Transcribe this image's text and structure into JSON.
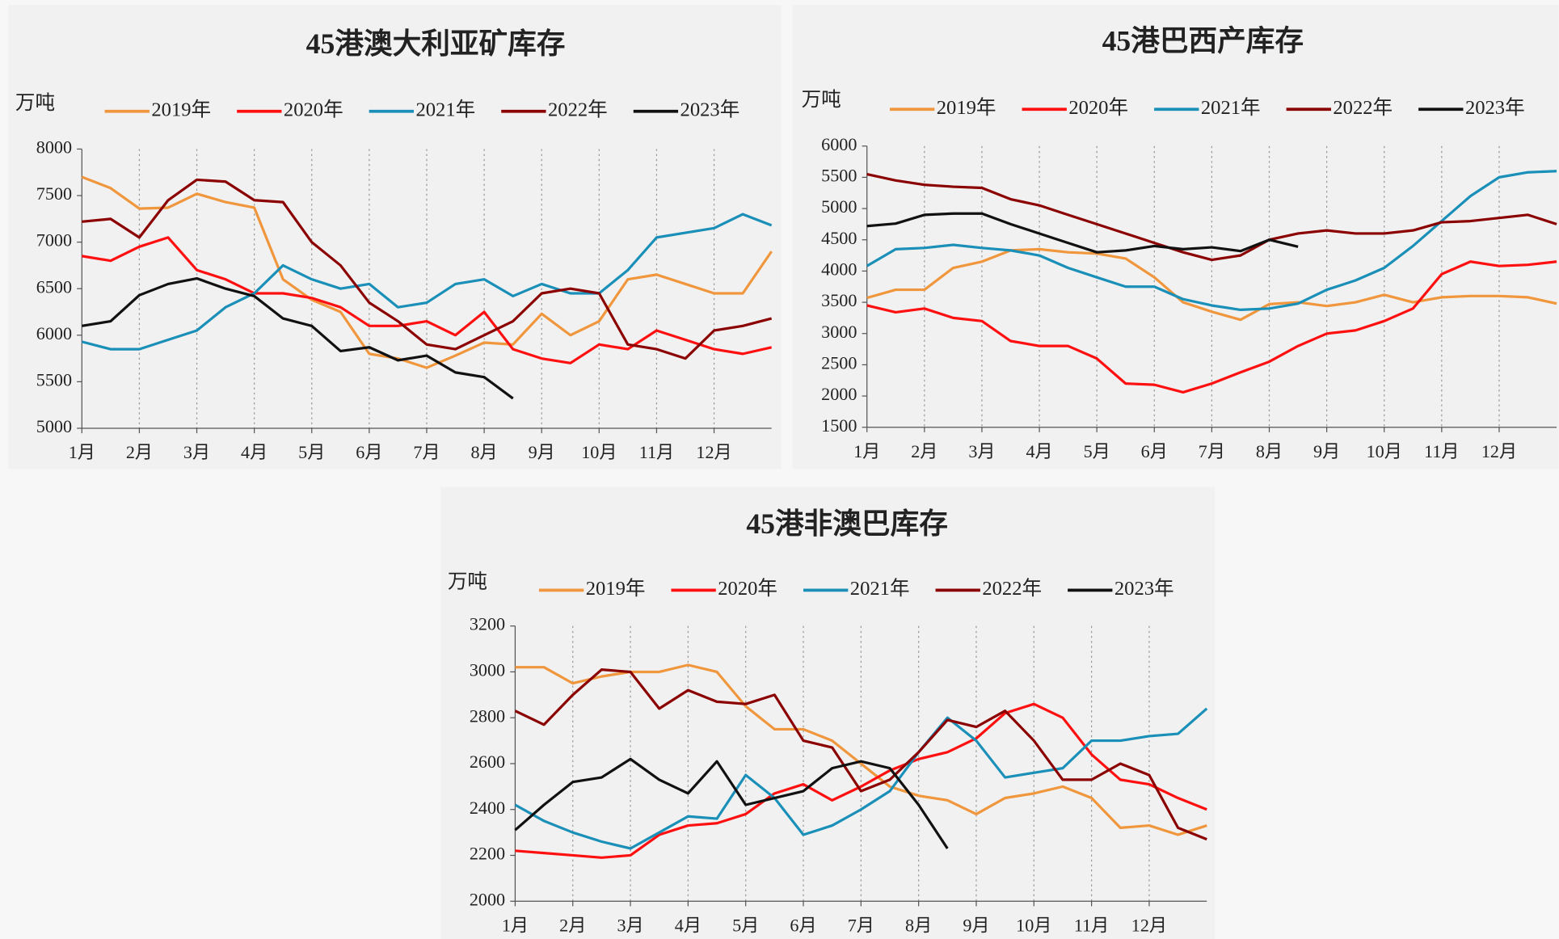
{
  "chart_data": [
    {
      "type": "line",
      "title": "45港澳大利亚矿库存",
      "y_label": "万吨",
      "x": [
        1,
        1.5,
        2,
        2.5,
        3,
        3.5,
        4,
        4.5,
        5,
        5.5,
        6,
        6.5,
        7,
        7.5,
        8,
        8.5,
        9,
        9.5,
        10,
        10.5,
        11,
        11.5,
        12,
        12.5,
        13
      ],
      "xlim": [
        1,
        13
      ],
      "xticks": [
        {
          "value": 1,
          "label": "1月"
        },
        {
          "value": 2,
          "label": "2月"
        },
        {
          "value": 3,
          "label": "3月"
        },
        {
          "value": 4,
          "label": "4月"
        },
        {
          "value": 5,
          "label": "5月"
        },
        {
          "value": 6,
          "label": "6月"
        },
        {
          "value": 7,
          "label": "7月"
        },
        {
          "value": 8,
          "label": "8月"
        },
        {
          "value": 9,
          "label": "9月"
        },
        {
          "value": 10,
          "label": "10月"
        },
        {
          "value": 11,
          "label": "11月"
        },
        {
          "value": 12,
          "label": "12月"
        }
      ],
      "ylim": [
        5000,
        8000
      ],
      "yticks": [
        5000,
        5500,
        6000,
        6500,
        7000,
        7500,
        8000
      ],
      "grid": true,
      "series": [
        {
          "name": "2019年",
          "color": "#f0963c",
          "values": [
            7700,
            7580,
            7360,
            7370,
            7520,
            7430,
            7370,
            6600,
            6380,
            6250,
            5800,
            5750,
            5650,
            5780,
            5920,
            5900,
            6230,
            6000,
            6150,
            6600,
            6650,
            6550,
            6450,
            6450,
            6900
          ]
        },
        {
          "name": "2020年",
          "color": "#ff1010",
          "values": [
            6850,
            6800,
            6950,
            7050,
            6700,
            6600,
            6450,
            6450,
            6400,
            6300,
            6100,
            6100,
            6150,
            6000,
            6250,
            5850,
            5750,
            5700,
            5900,
            5850,
            6050,
            5950,
            5850,
            5800,
            5870
          ]
        },
        {
          "name": "2021年",
          "color": "#1a8fb8",
          "values": [
            5930,
            5850,
            5850,
            5950,
            6050,
            6300,
            6450,
            6750,
            6600,
            6500,
            6550,
            6300,
            6350,
            6550,
            6600,
            6420,
            6550,
            6450,
            6450,
            6700,
            7050,
            7100,
            7150,
            7300,
            7180
          ]
        },
        {
          "name": "2022年",
          "color": "#8b0000",
          "values": [
            7220,
            7250,
            7050,
            7450,
            7670,
            7650,
            7450,
            7430,
            7000,
            6750,
            6350,
            6150,
            5900,
            5850,
            6000,
            6150,
            6450,
            6500,
            6450,
            5900,
            5850,
            5750,
            6050,
            6100,
            6180
          ]
        },
        {
          "name": "2023年",
          "color": "#111111",
          "values": [
            6100,
            6150,
            6430,
            6550,
            6610,
            6500,
            6420,
            6180,
            6100,
            5830,
            5870,
            5730,
            5780,
            5600,
            5550,
            5320,
            null,
            null,
            null,
            null,
            null,
            null,
            null,
            null,
            null
          ]
        }
      ]
    },
    {
      "type": "line",
      "title": "45港巴西产库存",
      "y_label": "万吨",
      "x": [
        1,
        1.5,
        2,
        2.5,
        3,
        3.5,
        4,
        4.5,
        5,
        5.5,
        6,
        6.5,
        7,
        7.5,
        8,
        8.5,
        9,
        9.5,
        10,
        10.5,
        11,
        11.5,
        12,
        12.5,
        13
      ],
      "xlim": [
        1,
        13
      ],
      "xticks": [
        {
          "value": 1,
          "label": "1月"
        },
        {
          "value": 2,
          "label": "2月"
        },
        {
          "value": 3,
          "label": "3月"
        },
        {
          "value": 4,
          "label": "4月"
        },
        {
          "value": 5,
          "label": "5月"
        },
        {
          "value": 6,
          "label": "6月"
        },
        {
          "value": 7,
          "label": "7月"
        },
        {
          "value": 8,
          "label": "8月"
        },
        {
          "value": 9,
          "label": "9月"
        },
        {
          "value": 10,
          "label": "10月"
        },
        {
          "value": 11,
          "label": "11月"
        },
        {
          "value": 12,
          "label": "12月"
        }
      ],
      "ylim": [
        1500,
        6000
      ],
      "yticks": [
        1500,
        2000,
        2500,
        3000,
        3500,
        4000,
        4500,
        5000,
        5500,
        6000
      ],
      "grid": true,
      "series": [
        {
          "name": "2019年",
          "color": "#f0963c",
          "values": [
            3570,
            3700,
            3700,
            4050,
            4150,
            4330,
            4350,
            4300,
            4280,
            4200,
            3900,
            3500,
            3350,
            3220,
            3470,
            3500,
            3440,
            3500,
            3620,
            3500,
            3580,
            3600,
            3600,
            3580,
            3480
          ]
        },
        {
          "name": "2020年",
          "color": "#ff1010",
          "values": [
            3450,
            3340,
            3400,
            3250,
            3200,
            2880,
            2800,
            2800,
            2600,
            2200,
            2180,
            2060,
            2200,
            2380,
            2550,
            2800,
            3000,
            3050,
            3200,
            3400,
            3950,
            4150,
            4080,
            4100,
            4150
          ]
        },
        {
          "name": "2021年",
          "color": "#1a8fb8",
          "values": [
            4080,
            4350,
            4370,
            4420,
            4370,
            4330,
            4250,
            4050,
            3900,
            3750,
            3750,
            3550,
            3450,
            3380,
            3400,
            3480,
            3700,
            3850,
            4050,
            4400,
            4800,
            5200,
            5500,
            5580,
            5600
          ]
        },
        {
          "name": "2022年",
          "color": "#8b0000",
          "values": [
            5550,
            5450,
            5380,
            5350,
            5330,
            5150,
            5050,
            4900,
            4750,
            4600,
            4450,
            4300,
            4180,
            4250,
            4500,
            4600,
            4650,
            4600,
            4600,
            4650,
            4780,
            4800,
            4850,
            4900,
            4750
          ]
        },
        {
          "name": "2023年",
          "color": "#111111",
          "values": [
            4720,
            4760,
            4900,
            4920,
            4920,
            4750,
            4600,
            4450,
            4300,
            4330,
            4400,
            4350,
            4380,
            4320,
            4500,
            4390,
            null,
            null,
            null,
            null,
            null,
            null,
            null,
            null,
            null
          ]
        }
      ]
    },
    {
      "type": "line",
      "title": "45港非澳巴库存",
      "y_label": "万吨",
      "x": [
        1,
        1.5,
        2,
        2.5,
        3,
        3.5,
        4,
        4.5,
        5,
        5.5,
        6,
        6.5,
        7,
        7.5,
        8,
        8.5,
        9,
        9.5,
        10,
        10.5,
        11,
        11.5,
        12,
        12.5,
        13
      ],
      "xlim": [
        1,
        13
      ],
      "xticks": [
        {
          "value": 1,
          "label": "1月"
        },
        {
          "value": 2,
          "label": "2月"
        },
        {
          "value": 3,
          "label": "3月"
        },
        {
          "value": 4,
          "label": "4月"
        },
        {
          "value": 5,
          "label": "5月"
        },
        {
          "value": 6,
          "label": "6月"
        },
        {
          "value": 7,
          "label": "7月"
        },
        {
          "value": 8,
          "label": "8月"
        },
        {
          "value": 9,
          "label": "9月"
        },
        {
          "value": 10,
          "label": "10月"
        },
        {
          "value": 11,
          "label": "11月"
        },
        {
          "value": 12,
          "label": "12月"
        }
      ],
      "ylim": [
        2000,
        3200
      ],
      "yticks": [
        2000,
        2200,
        2400,
        2600,
        2800,
        3000,
        3200
      ],
      "grid": true,
      "series": [
        {
          "name": "2019年",
          "color": "#f0963c",
          "values": [
            3020,
            3020,
            2950,
            2980,
            3000,
            3000,
            3030,
            3000,
            2850,
            2750,
            2750,
            2700,
            2600,
            2500,
            2460,
            2440,
            2380,
            2450,
            2470,
            2500,
            2450,
            2320,
            2330,
            2290,
            2330
          ]
        },
        {
          "name": "2020年",
          "color": "#ff1010",
          "values": [
            2220,
            2210,
            2200,
            2190,
            2200,
            2290,
            2330,
            2340,
            2380,
            2470,
            2510,
            2440,
            2500,
            2570,
            2620,
            2650,
            2710,
            2820,
            2860,
            2800,
            2640,
            2530,
            2510,
            2450,
            2400
          ]
        },
        {
          "name": "2021年",
          "color": "#1a8fb8",
          "values": [
            2420,
            2350,
            2300,
            2260,
            2230,
            2300,
            2370,
            2360,
            2550,
            2450,
            2290,
            2330,
            2400,
            2480,
            2650,
            2800,
            2700,
            2540,
            2560,
            2580,
            2700,
            2700,
            2720,
            2730,
            2840
          ]
        },
        {
          "name": "2022年",
          "color": "#8b0000",
          "values": [
            2830,
            2770,
            2900,
            3010,
            3000,
            2840,
            2920,
            2870,
            2860,
            2900,
            2700,
            2670,
            2480,
            2530,
            2650,
            2790,
            2760,
            2830,
            2700,
            2530,
            2530,
            2600,
            2550,
            2320,
            2270
          ]
        },
        {
          "name": "2023年",
          "color": "#111111",
          "values": [
            2310,
            2420,
            2520,
            2540,
            2620,
            2530,
            2470,
            2610,
            2420,
            2450,
            2480,
            2580,
            2610,
            2580,
            2420,
            2230,
            null,
            null,
            null,
            null,
            null,
            null,
            null,
            null,
            null
          ]
        }
      ]
    }
  ]
}
